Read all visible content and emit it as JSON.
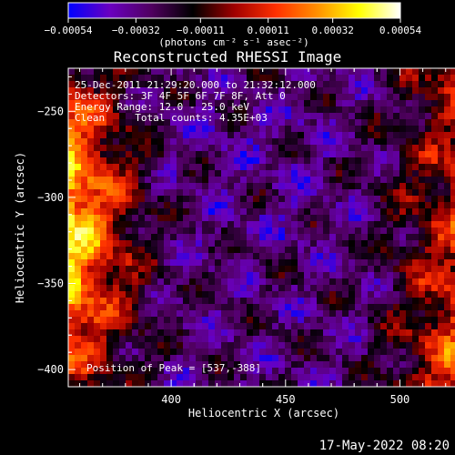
{
  "chart_data": {
    "type": "heatmap",
    "title": "Reconstructed RHESSI Image",
    "xlabel": "Heliocentric X (arcsec)",
    "ylabel": "Heliocentric Y (arcsec)",
    "xlim": [
      355,
      540
    ],
    "ylim": [
      -410,
      -225
    ],
    "x_ticks": [
      400,
      450,
      500
    ],
    "y_ticks": [
      -250,
      -300,
      -350,
      -400
    ],
    "x_tick_labels": [
      "400",
      "450",
      "500"
    ],
    "y_tick_labels": [
      "−250",
      "−300",
      "−350",
      "−400"
    ],
    "colorbar": {
      "range": [
        -0.00054,
        0.00054
      ],
      "ticks": [
        -0.00054,
        -0.00032,
        -0.00011,
        0.00011,
        0.00032,
        0.00054
      ],
      "tick_labels": [
        "−0.00054",
        "−0.00032",
        "−0.00011",
        "0.00011",
        "0.00032",
        "0.00054"
      ],
      "unit_label": "(photons cm⁻² s⁻¹ asec⁻²)",
      "colormap": [
        "#0000ff",
        "#6a00c0",
        "#500060",
        "#000000",
        "#a00000",
        "#ff3000",
        "#ff9000",
        "#ffff00",
        "#ffffff"
      ]
    },
    "annotations": [
      "25-Dec-2011 21:29:20.000 to 21:32:12.000",
      "Detectors: 3F 4F 5F 6F 7F 8F, Att 0",
      "Energy Range: 12.0 - 25.0 keV",
      "Clean     Total counts: 4.35E+03"
    ],
    "peak_label": "Position of Peak = [537,-388]",
    "peak": [
      537,
      -388
    ],
    "timestamp": "17-May-2022 08:20"
  }
}
